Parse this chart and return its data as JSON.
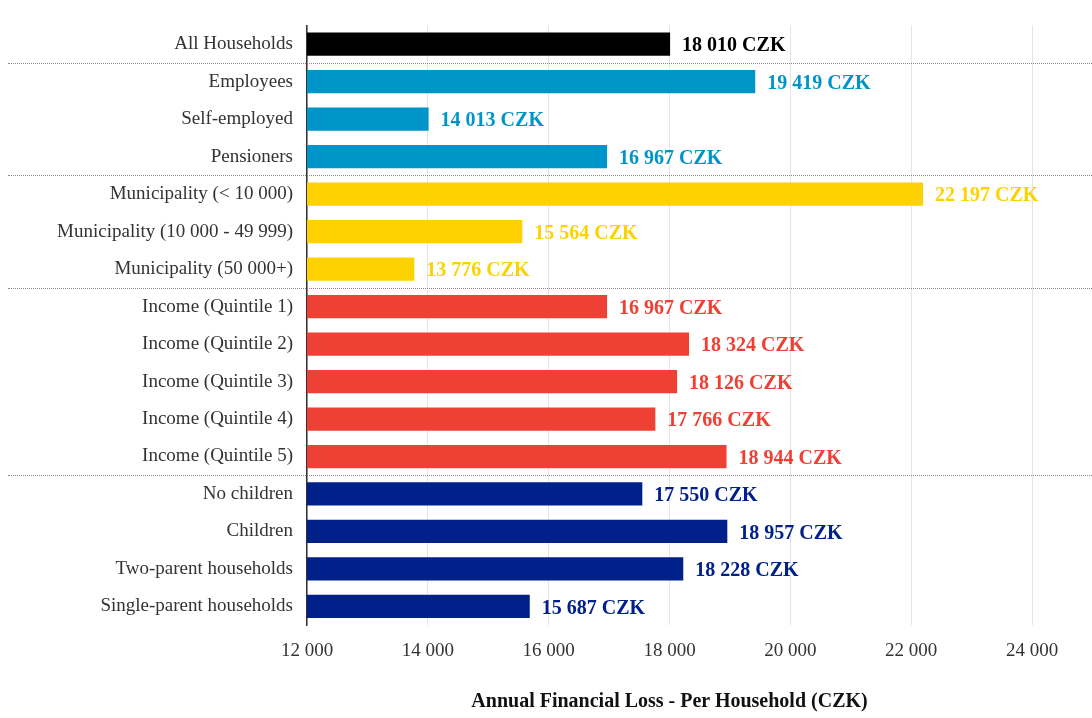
{
  "chart_data": {
    "type": "bar",
    "orientation": "horizontal",
    "xlabel": "Annual Financial Loss - Per Household (CZK)",
    "categories": [
      "All Households",
      "Employees",
      "Self-employed",
      "Pensioners",
      "Municipality (< 10 000)",
      "Municipality (10 000 - 49 999)",
      "Municipality (50 000+)",
      "Income (Quintile 1)",
      "Income (Quintile 2)",
      "Income (Quintile 3)",
      "Income (Quintile 4)",
      "Income (Quintile 5)",
      "No children",
      "Children",
      "Two-parent households",
      "Single-parent households"
    ],
    "values": [
      18010,
      19419,
      14013,
      16967,
      22197,
      15564,
      13776,
      16967,
      18324,
      18126,
      17766,
      18944,
      17550,
      18957,
      18228,
      15687
    ],
    "value_labels": [
      "18 010 CZK",
      "19 419 CZK",
      "14 013 CZK",
      "16 967 CZK",
      "22 197 CZK",
      "15 564 CZK",
      "13 776 CZK",
      "16 967 CZK",
      "18 324 CZK",
      "18 126 CZK",
      "17 766 CZK",
      "18 944 CZK",
      "17 550 CZK",
      "18 957 CZK",
      "18 228 CZK",
      "15 687 CZK"
    ],
    "colors": [
      "#000000",
      "#0095c8",
      "#0095c8",
      "#0095c8",
      "#fdd200",
      "#fdd200",
      "#fdd200",
      "#ef4035",
      "#ef4035",
      "#ef4035",
      "#ef4035",
      "#ef4035",
      "#00208a",
      "#00208a",
      "#00208a",
      "#00208a"
    ],
    "xlim": [
      12000,
      24000
    ],
    "xticks": [
      {
        "value": 12000,
        "label": "12 000"
      },
      {
        "value": 14000,
        "label": "14 000"
      },
      {
        "value": 16000,
        "label": "16 000"
      },
      {
        "value": 18000,
        "label": "18 000"
      },
      {
        "value": 20000,
        "label": "20 000"
      },
      {
        "value": 22000,
        "label": "22 000"
      },
      {
        "value": 24000,
        "label": "24 000"
      }
    ],
    "grid": "x",
    "legend": false
  }
}
